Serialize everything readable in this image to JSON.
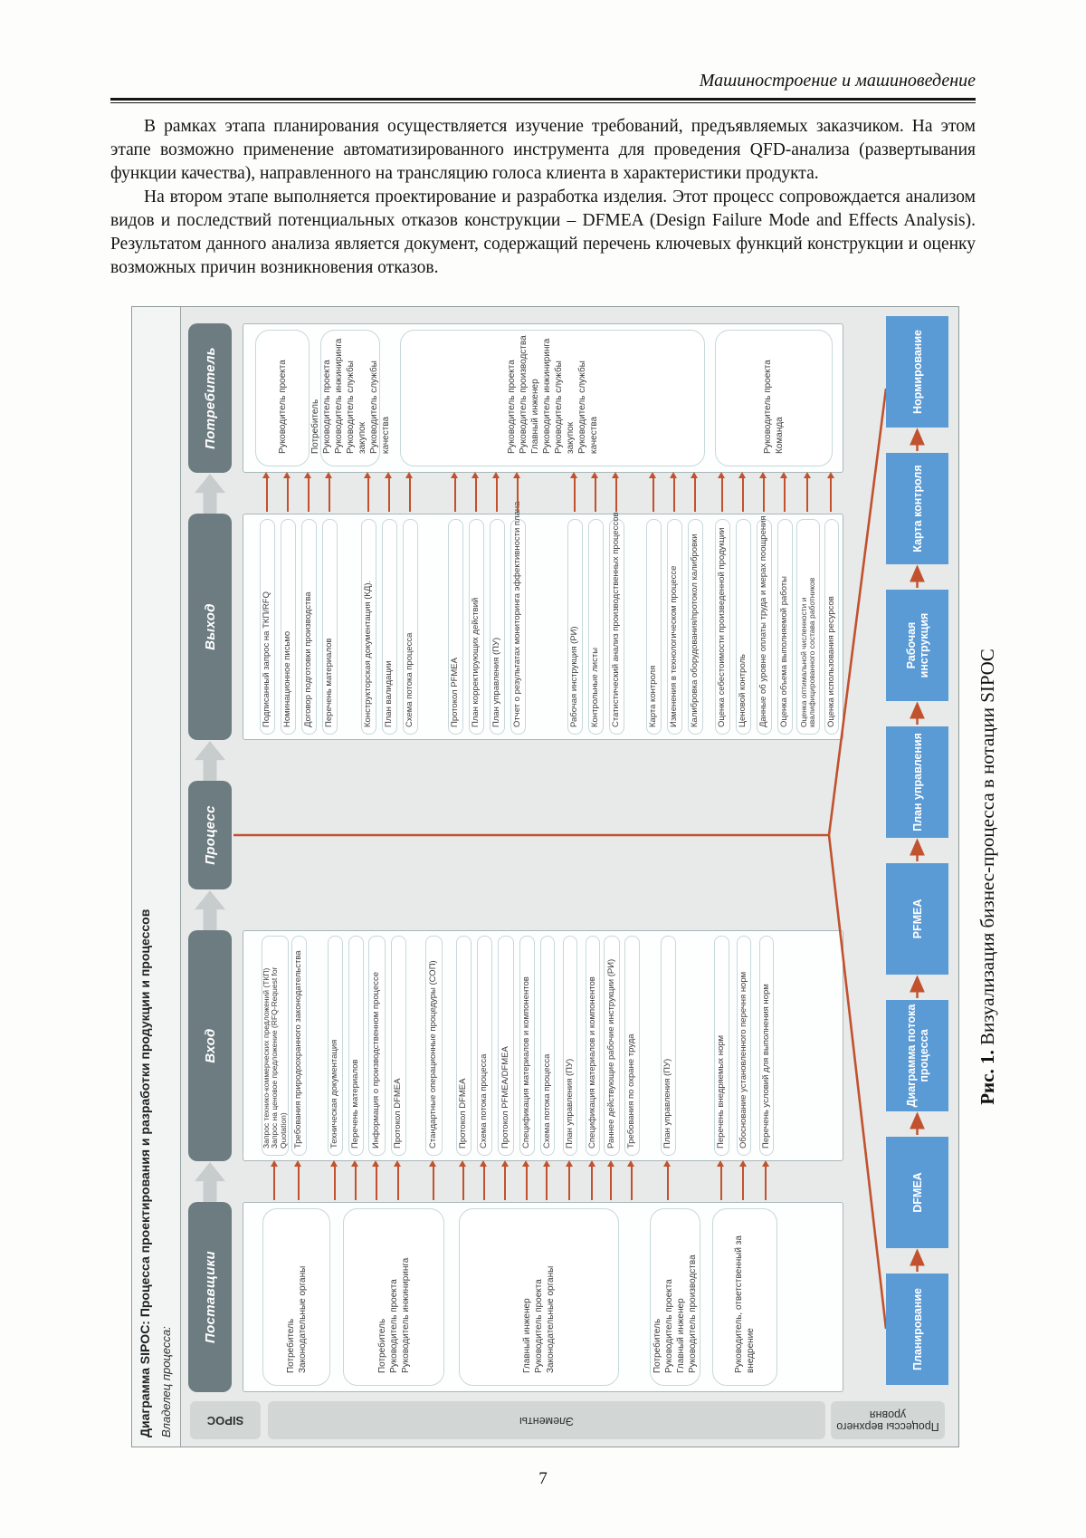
{
  "page": {
    "journal_header": "Машиностроение и машиноведение",
    "page_number": "7",
    "paragraphs": [
      "В рамках этапа планирования осуществляется изучение требований, предъявляемых заказчиком. На этом этапе возможно применение автоматизированного инструмента для проведения QFD-анализа (развертывания функции качества), направленного на трансляцию голоса клиента в характеристики продукта.",
      "На втором этапе выполняется проектирование и разработка изделия. Этот процесс сопровождается анализом видов и последствий потенциальных отказов конструкции – DFMEA (Design Failure Mode and Effects Analysis). Результатом данного анализа является документ, содержащий перечень ключевых функций конструкции и оценку возможных причин возникновения отказов."
    ]
  },
  "figure": {
    "caption_label": "Рис. 1.",
    "caption_text": " Визуализация бизнес-процесса в нотации SIPOC",
    "title": "Диаграмма SIPOC: Процесса проектирования и разработки продукции и процессов",
    "owner_label": "Владелец процесса:",
    "row_labels": [
      "SIPOC",
      "Элементы",
      "Процессы верхнего уровня"
    ],
    "colors": {
      "accent_red": "#c2512e",
      "header_bg": "#6d7c81",
      "process_blue": "#5b9bd5",
      "diagram_bg": "#e7eae9",
      "panel_border": "#a9b7b9"
    },
    "columns": {
      "suppliers": {
        "header": "Поставщики",
        "groups": [
          [
            "Потребитель",
            "Законодательные органы"
          ],
          [
            "Потребитель",
            "Руководитель проекта",
            "Руководитель инжиниринга"
          ],
          [
            "Главный инженер",
            "Руководитель проекта",
            "Законодательные органы"
          ],
          [
            "Потребитель",
            "Руководитель проекта",
            "Главный инженер",
            "Руководитель производства"
          ],
          [
            "Руководитель, ответственный за внедрение"
          ]
        ]
      },
      "input": {
        "header": "Вход",
        "items": [
          {
            "lines": [
              "Запрос технико-коммерческих предложений (ТКП)",
              "Запрос на ценовое предложение (RFQ-Request for",
              "Quotation)"
            ]
          },
          {
            "lines": [
              "Требования природоохранного законодательства"
            ]
          },
          {
            "lines": [
              "Техническая документация"
            ]
          },
          {
            "lines": [
              "Перечень материалов"
            ]
          },
          {
            "lines": [
              "Информация о производственном процессе"
            ]
          },
          {
            "lines": [
              "Протокол DFMEA"
            ]
          },
          {
            "lines": [
              "Стандартные операционные процедуры (СОП)"
            ]
          },
          {
            "lines": [
              "Протокол DFMEA"
            ]
          },
          {
            "lines": [
              "Схема потока процесса"
            ]
          },
          {
            "lines": [
              "Протокол PFMEA/DFMEA"
            ]
          },
          {
            "lines": [
              "Спецификация материалов и компонентов"
            ]
          },
          {
            "lines": [
              "Схема потока процесса"
            ]
          },
          {
            "lines": [
              "План управления (ПУ)"
            ]
          },
          {
            "lines": [
              "Спецификация материалов и компонентов"
            ]
          },
          {
            "lines": [
              "Раннее действующие рабочие инструкции (РИ)"
            ]
          },
          {
            "lines": [
              "Требования по охране труда"
            ]
          },
          {
            "lines": [
              "План управления (ПУ)"
            ]
          },
          {
            "lines": [
              "Перечень внедряемых норм"
            ]
          },
          {
            "lines": [
              "Обоснование установленного перечня норм"
            ]
          },
          {
            "lines": [
              "Перечень условий для выполнения норм"
            ]
          }
        ]
      },
      "process": {
        "header": "Процесс"
      },
      "output": {
        "header": "Выход",
        "items": [
          "Подписанный запрос на ТКП/RFQ",
          "Номинационное письмо",
          "Договор подготовки производства",
          "Перечень материалов",
          "Конструкторская документация (КД).",
          "План валидации",
          "Схема потока процесса",
          "Протокол PFMEA",
          "План корректирующих действий",
          "План управления (ПУ)",
          "Отчет о результатах мониторинга эффективности плана",
          "Рабочая инструкция (РИ)",
          "Контрольные листы",
          "Статистический анализ производственных процессов",
          "Карта контроля",
          "Изменения в технологическом процессе",
          "Калибровка оборудования/протокол калибровки",
          "Оценка себестоимости произведенной продукции",
          "Ценовой контроль",
          "Данные об уровне оплаты труда и мерах поощрения",
          "Оценка объема выполняемой работы",
          "Оценка оптимальной численности и квалифицированного состава работников",
          "Оценка использования ресурсов"
        ]
      },
      "consumer": {
        "header": "Потребитель",
        "groups": [
          [
            "Руководитель проекта"
          ],
          [
            "Потребитель",
            "Руководитель проекта",
            "Руководитель инжиниринга",
            "Руководитель службы закупок",
            "Руководитель службы качества"
          ],
          [
            "Руководитель проекта",
            "Руководитель производства",
            "Главный инженер",
            "Руководитель инжиниринга",
            "Руководитель службы закупок",
            "Руководитель службы качества"
          ],
          [
            "Руководитель проекта",
            "Команда"
          ]
        ]
      }
    },
    "process_chain": [
      "Планирование",
      "DFMEA",
      "Диаграмма потока процесса",
      "PFMEA",
      "План управления",
      "Рабочая инструкция",
      "Карта контроля",
      "Нормирование"
    ]
  }
}
